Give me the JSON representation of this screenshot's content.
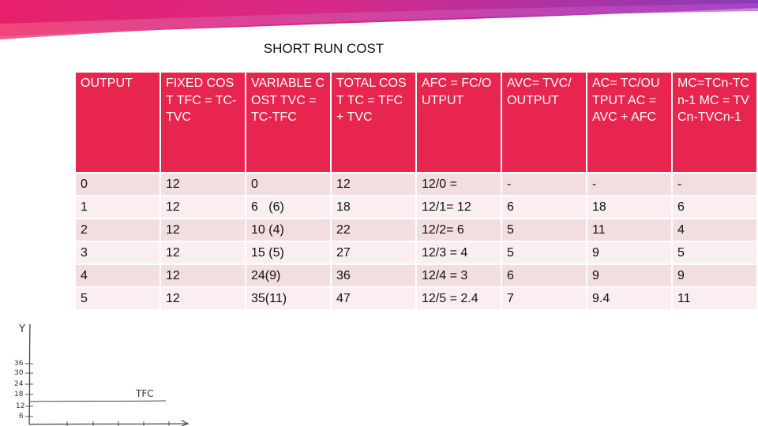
{
  "slide": {
    "title": "SHORT RUN COST"
  },
  "table": {
    "headers": [
      "OUTPUT",
      "FIXED COST TFC = TC-TVC",
      "VARIABLE COST TVC = TC-TFC",
      "TOTAL COST TC = TFC + TVC",
      "AFC = FC/OUTPUT",
      "AVC= TVC/OUTPUT",
      "AC= TC/OUTPUT AC = AVC + AFC",
      "MC=TCn-TCn-1 MC = TVCn-TVCn-1"
    ],
    "rows": [
      [
        "0",
        "12",
        "0",
        "12",
        "12/0 =",
        "-",
        "-",
        "-"
      ],
      [
        "1",
        "12",
        "6   (6)",
        "18",
        "12/1= 12",
        "6",
        "18",
        "6"
      ],
      [
        "2",
        "12",
        "10 (4)",
        "22",
        "12/2= 6",
        "5",
        "11",
        "4"
      ],
      [
        "3",
        "12",
        "15 (5)",
        "27",
        "12/3 = 4",
        "5",
        "9",
        "5"
      ],
      [
        "4",
        "12",
        "24(9)",
        "36",
        "12/4 = 3",
        "6",
        "9",
        "9"
      ],
      [
        "5",
        "12",
        "35(11)",
        "47",
        "12/5 = 2.4",
        "7",
        "9.4",
        "11"
      ]
    ]
  },
  "sketch": {
    "y_axis_label": "Y",
    "ticks": [
      "36",
      "30",
      "24",
      "18",
      "12",
      "6"
    ],
    "curve_label": "TFC"
  },
  "colors": {
    "header_bg": "#e8254e",
    "row_bg": "#f2dde1",
    "banner_pink": "#e8206a",
    "banner_purple": "#8a3ab9"
  }
}
